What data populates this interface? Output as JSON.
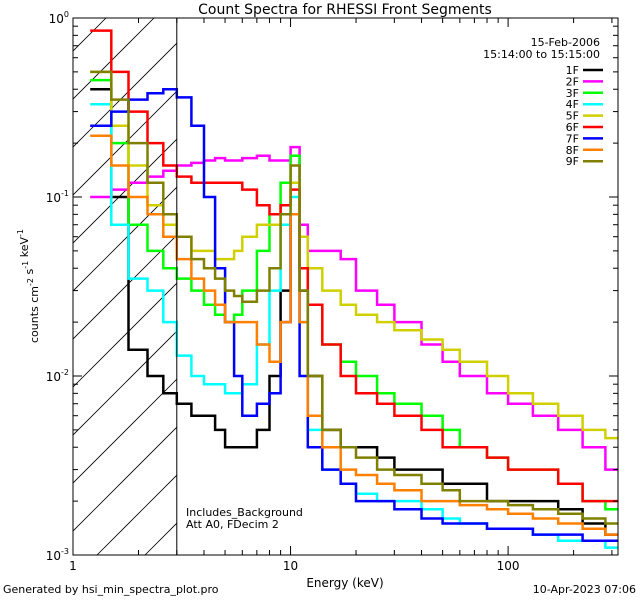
{
  "chart_data": {
    "type": "line",
    "title": "Count Spectra for RHESSI Front Segments",
    "xlabel": "Energy (keV)",
    "ylabel": "counts cm^-2 s^-1 keV^-1",
    "xscale": "log",
    "yscale": "log",
    "xlim": [
      1,
      320
    ],
    "ylim": [
      0.001,
      1.0
    ],
    "x_ticks": [
      {
        "value": 1,
        "label": "1"
      },
      {
        "value": 10,
        "label": "10"
      },
      {
        "value": 100,
        "label": "100"
      }
    ],
    "y_ticks": [
      {
        "value": 1,
        "base": "10",
        "exp": "0"
      },
      {
        "value": 0.1,
        "base": "10",
        "exp": "-1"
      },
      {
        "value": 0.01,
        "base": "10",
        "exp": "-2"
      },
      {
        "value": 0.001,
        "base": "10",
        "exp": "-3"
      }
    ],
    "annotations": {
      "date": "15-Feb-2006",
      "time_range": "15:14:00 to 15:15:00",
      "background": "Includes_Background",
      "attenuator": "Att A0, FDecim 2"
    },
    "hatched_region_x": [
      1,
      3
    ],
    "series": [
      {
        "name": "1F",
        "color": "#000000",
        "x": [
          1.2,
          1.5,
          1.8,
          2.2,
          2.6,
          3.0,
          3.5,
          4.0,
          4.5,
          5.0,
          5.5,
          6.0,
          7.0,
          8.0,
          9.0,
          10.0,
          11.0,
          12.0,
          14.0,
          17.0,
          20.0,
          25.0,
          30.0,
          40.0,
          50.0,
          60.0,
          80.0,
          100.0,
          130.0,
          170.0,
          220.0,
          280.0
        ],
        "y": [
          0.4,
          0.1,
          0.014,
          0.01,
          0.008,
          0.007,
          0.006,
          0.006,
          0.005,
          0.004,
          0.004,
          0.004,
          0.005,
          0.01,
          0.03,
          0.08,
          0.03,
          0.01,
          0.005,
          0.004,
          0.004,
          0.0035,
          0.003,
          0.003,
          0.0025,
          0.0025,
          0.002,
          0.002,
          0.002,
          0.0018,
          0.0015,
          0.0013
        ]
      },
      {
        "name": "2F",
        "color": "#ff00ff",
        "x": [
          1.2,
          1.5,
          1.8,
          2.2,
          2.6,
          3.0,
          3.5,
          4.0,
          4.5,
          5.0,
          5.5,
          6.0,
          7.0,
          8.0,
          9.0,
          10.0,
          11.0,
          12.0,
          14.0,
          17.0,
          20.0,
          25.0,
          30.0,
          40.0,
          50.0,
          60.0,
          80.0,
          100.0,
          130.0,
          170.0,
          220.0,
          280.0
        ],
        "y": [
          0.1,
          0.11,
          0.12,
          0.13,
          0.14,
          0.15,
          0.155,
          0.16,
          0.165,
          0.16,
          0.16,
          0.165,
          0.17,
          0.16,
          0.16,
          0.19,
          0.07,
          0.05,
          0.05,
          0.045,
          0.03,
          0.025,
          0.02,
          0.015,
          0.012,
          0.01,
          0.008,
          0.007,
          0.006,
          0.005,
          0.004,
          0.003
        ]
      },
      {
        "name": "3F",
        "color": "#00ff00",
        "x": [
          1.2,
          1.5,
          1.8,
          2.2,
          2.6,
          3.0,
          3.5,
          4.0,
          4.5,
          5.0,
          5.5,
          6.0,
          7.0,
          8.0,
          9.0,
          10.0,
          11.0,
          12.0,
          14.0,
          17.0,
          20.0,
          25.0,
          30.0,
          40.0,
          50.0,
          60.0,
          80.0,
          100.0,
          130.0,
          170.0,
          220.0,
          280.0
        ],
        "y": [
          0.45,
          0.2,
          0.07,
          0.05,
          0.04,
          0.035,
          0.03,
          0.025,
          0.022,
          0.02,
          0.022,
          0.03,
          0.05,
          0.08,
          0.12,
          0.17,
          0.04,
          0.025,
          0.015,
          0.012,
          0.01,
          0.008,
          0.007,
          0.006,
          0.005,
          0.004,
          0.0035,
          0.003,
          0.003,
          0.0025,
          0.002,
          0.0018
        ]
      },
      {
        "name": "4F",
        "color": "#00ffff",
        "x": [
          1.2,
          1.5,
          1.8,
          2.2,
          2.6,
          3.0,
          3.5,
          4.0,
          4.5,
          5.0,
          5.5,
          6.0,
          7.0,
          8.0,
          9.0,
          10.0,
          11.0,
          12.0,
          14.0,
          17.0,
          20.0,
          25.0,
          30.0,
          40.0,
          50.0,
          60.0,
          80.0,
          100.0,
          130.0,
          170.0,
          220.0,
          280.0
        ],
        "y": [
          0.33,
          0.07,
          0.035,
          0.03,
          0.02,
          0.013,
          0.01,
          0.009,
          0.009,
          0.008,
          0.008,
          0.009,
          0.015,
          0.03,
          0.07,
          0.1,
          0.02,
          0.005,
          0.003,
          0.0025,
          0.0022,
          0.002,
          0.002,
          0.0018,
          0.0016,
          0.0015,
          0.0014,
          0.0014,
          0.0013,
          0.0012,
          0.0012,
          0.0011
        ]
      },
      {
        "name": "5F",
        "color": "#d0d000",
        "x": [
          1.2,
          1.5,
          1.8,
          2.2,
          2.6,
          3.0,
          3.5,
          4.0,
          4.5,
          5.0,
          5.5,
          6.0,
          7.0,
          8.0,
          9.0,
          10.0,
          11.0,
          12.0,
          14.0,
          17.0,
          20.0,
          25.0,
          30.0,
          40.0,
          50.0,
          60.0,
          80.0,
          100.0,
          130.0,
          170.0,
          220.0,
          280.0
        ],
        "y": [
          0.5,
          0.25,
          0.15,
          0.09,
          0.07,
          0.06,
          0.05,
          0.05,
          0.045,
          0.045,
          0.05,
          0.06,
          0.07,
          0.07,
          0.09,
          0.12,
          0.06,
          0.04,
          0.03,
          0.025,
          0.022,
          0.02,
          0.018,
          0.016,
          0.014,
          0.012,
          0.01,
          0.008,
          0.007,
          0.006,
          0.005,
          0.0045
        ]
      },
      {
        "name": "6F",
        "color": "#ff0000",
        "x": [
          1.2,
          1.5,
          1.8,
          2.2,
          2.6,
          3.0,
          3.5,
          4.0,
          4.5,
          5.0,
          5.5,
          6.0,
          7.0,
          8.0,
          9.0,
          10.0,
          11.0,
          12.0,
          14.0,
          17.0,
          20.0,
          25.0,
          30.0,
          40.0,
          50.0,
          60.0,
          80.0,
          100.0,
          130.0,
          170.0,
          220.0,
          280.0
        ],
        "y": [
          0.85,
          0.5,
          0.3,
          0.2,
          0.15,
          0.13,
          0.12,
          0.12,
          0.12,
          0.12,
          0.12,
          0.11,
          0.09,
          0.08,
          0.09,
          0.11,
          0.04,
          0.025,
          0.015,
          0.01,
          0.008,
          0.007,
          0.006,
          0.005,
          0.004,
          0.004,
          0.0035,
          0.003,
          0.003,
          0.0025,
          0.002,
          0.002
        ]
      },
      {
        "name": "7F",
        "color": "#0000ff",
        "x": [
          1.2,
          1.5,
          1.8,
          2.2,
          2.6,
          3.0,
          3.5,
          4.0,
          4.5,
          5.0,
          5.5,
          6.0,
          7.0,
          8.0,
          9.0,
          10.0,
          11.0,
          12.0,
          14.0,
          17.0,
          20.0,
          25.0,
          30.0,
          40.0,
          50.0,
          60.0,
          80.0,
          100.0,
          130.0,
          170.0,
          220.0,
          280.0
        ],
        "y": [
          0.25,
          0.3,
          0.35,
          0.38,
          0.4,
          0.36,
          0.25,
          0.1,
          0.04,
          0.02,
          0.01,
          0.006,
          0.007,
          0.008,
          0.02,
          0.08,
          0.01,
          0.004,
          0.003,
          0.0025,
          0.002,
          0.002,
          0.0018,
          0.0016,
          0.0015,
          0.0015,
          0.0014,
          0.0014,
          0.0013,
          0.0013,
          0.0012,
          0.0012
        ]
      },
      {
        "name": "8F",
        "color": "#ff8000",
        "x": [
          1.2,
          1.5,
          1.8,
          2.2,
          2.6,
          3.0,
          3.5,
          4.0,
          4.5,
          5.0,
          5.5,
          6.0,
          7.0,
          8.0,
          9.0,
          10.0,
          11.0,
          12.0,
          14.0,
          17.0,
          20.0,
          25.0,
          30.0,
          40.0,
          50.0,
          60.0,
          80.0,
          100.0,
          130.0,
          170.0,
          220.0,
          280.0
        ],
        "y": [
          0.22,
          0.15,
          0.1,
          0.08,
          0.06,
          0.045,
          0.035,
          0.03,
          0.025,
          0.02,
          0.02,
          0.02,
          0.015,
          0.012,
          0.02,
          0.08,
          0.02,
          0.006,
          0.004,
          0.003,
          0.0028,
          0.0025,
          0.0023,
          0.002,
          0.002,
          0.0019,
          0.0018,
          0.0017,
          0.0016,
          0.0015,
          0.0014,
          0.0013
        ]
      },
      {
        "name": "9F",
        "color": "#808000",
        "x": [
          1.2,
          1.5,
          1.8,
          2.2,
          2.6,
          3.0,
          3.5,
          4.0,
          4.5,
          5.0,
          5.5,
          6.0,
          7.0,
          8.0,
          9.0,
          10.0,
          11.0,
          12.0,
          14.0,
          17.0,
          20.0,
          25.0,
          30.0,
          40.0,
          50.0,
          60.0,
          80.0,
          100.0,
          130.0,
          170.0,
          220.0,
          280.0
        ],
        "y": [
          0.5,
          0.35,
          0.2,
          0.12,
          0.08,
          0.06,
          0.045,
          0.04,
          0.035,
          0.03,
          0.028,
          0.026,
          0.03,
          0.04,
          0.08,
          0.15,
          0.03,
          0.01,
          0.005,
          0.004,
          0.0035,
          0.003,
          0.0028,
          0.0025,
          0.0023,
          0.002,
          0.002,
          0.0019,
          0.0018,
          0.0017,
          0.0016,
          0.0015
        ]
      }
    ]
  },
  "footer": {
    "generated_by": "Generated by hsi_min_spectra_plot.pro",
    "timestamp": "10-Apr-2023 07:06"
  }
}
